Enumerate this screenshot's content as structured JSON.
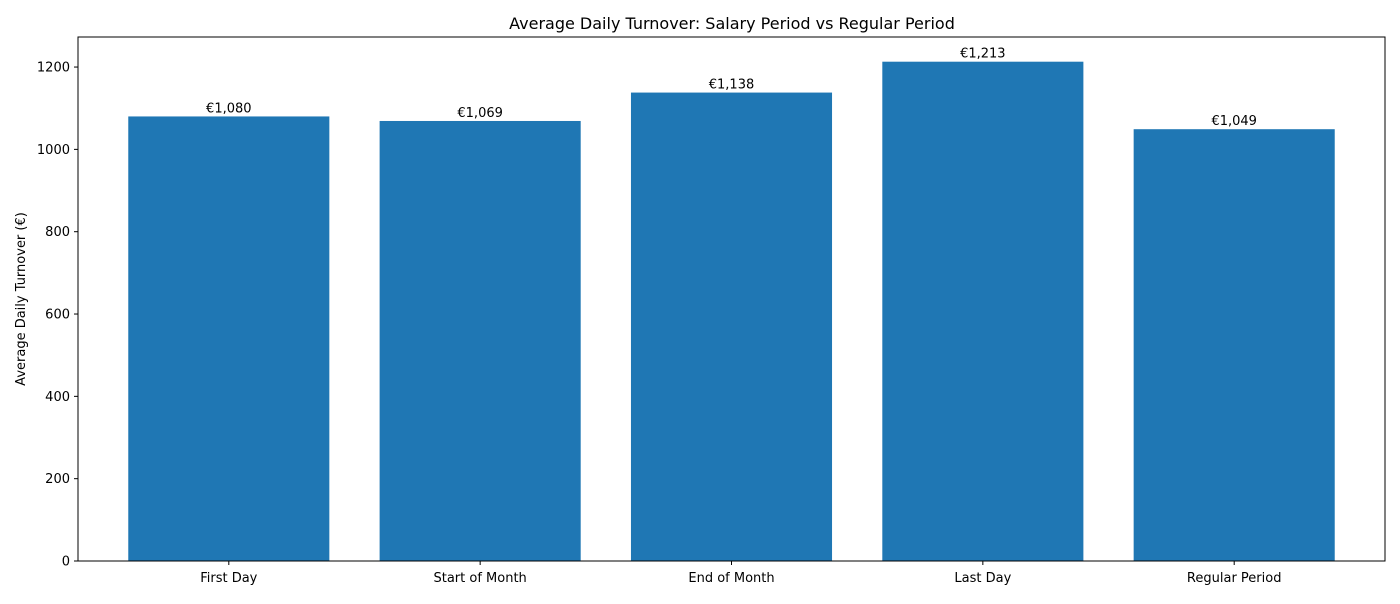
{
  "chart_data": {
    "type": "bar",
    "title": "Average Daily Turnover: Salary Period vs Regular Period",
    "xlabel": "",
    "ylabel": "Average Daily Turnover (€)",
    "categories": [
      "First Day",
      "Start of Month",
      "End of Month",
      "Last Day",
      "Regular Period"
    ],
    "values": [
      1080,
      1069,
      1138,
      1213,
      1049
    ],
    "value_labels": [
      "€1,080",
      "€1,069",
      "€1,138",
      "€1,213",
      "€1,049"
    ],
    "ylim": [
      0,
      1273
    ],
    "yticks": [
      0,
      200,
      400,
      600,
      800,
      1000,
      1200
    ],
    "bar_color": "#1f77b4",
    "grid": false,
    "legend": "none"
  }
}
